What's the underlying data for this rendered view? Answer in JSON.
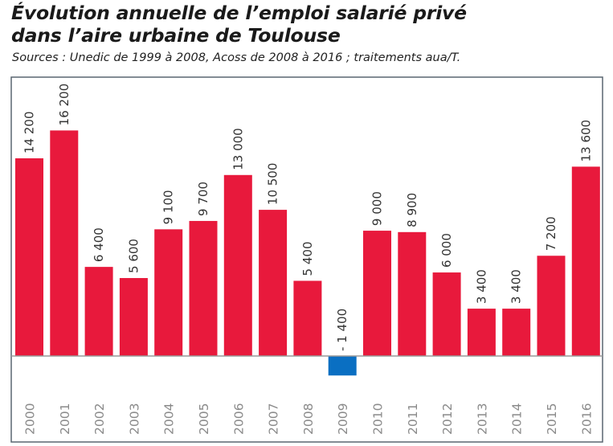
{
  "chart_data": {
    "type": "bar",
    "title_line1": "Évolution annuelle de l’emploi salarié privé",
    "title_line2": "dans l’aire urbaine de Toulouse",
    "subtitle": "Sources : Unedic de 1999 à 2008, Acoss de 2008 à 2016 ; traitements aua/T.",
    "categories": [
      "2000",
      "2001",
      "2002",
      "2003",
      "2004",
      "2005",
      "2006",
      "2007",
      "2008",
      "2009",
      "2010",
      "2011",
      "2012",
      "2013",
      "2014",
      "2015",
      "2016"
    ],
    "values": [
      14200,
      16200,
      6400,
      5600,
      9100,
      9700,
      13000,
      10500,
      5400,
      -1400,
      9000,
      8900,
      6000,
      3400,
      3400,
      7200,
      13600
    ],
    "data_labels": [
      "14 200",
      "16 200",
      "6 400",
      "5 600",
      "9 100",
      "9 700",
      "13 000",
      "10 500",
      "5 400",
      "- 1 400",
      "9 000",
      "8 900",
      "6 000",
      "3 400",
      "3 400",
      "7 200",
      "13 600"
    ],
    "colors": {
      "positive": "#e8193c",
      "negative": "#0a6fc2"
    },
    "grid": false,
    "legend": "none"
  }
}
